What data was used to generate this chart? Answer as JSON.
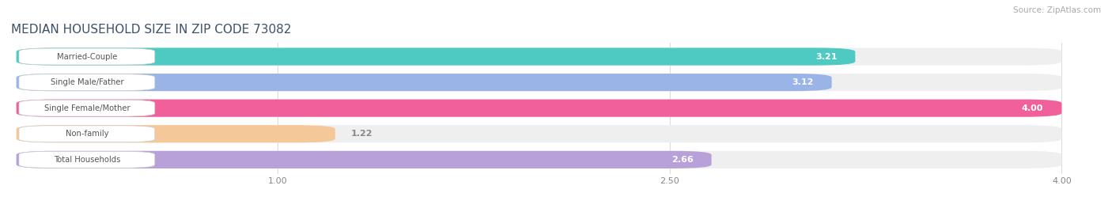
{
  "title": "MEDIAN HOUSEHOLD SIZE IN ZIP CODE 73082",
  "source": "Source: ZipAtlas.com",
  "categories": [
    "Married-Couple",
    "Single Male/Father",
    "Single Female/Mother",
    "Non-family",
    "Total Households"
  ],
  "values": [
    3.21,
    3.12,
    4.0,
    1.22,
    2.66
  ],
  "bar_colors": [
    "#4ecac2",
    "#9ab4e8",
    "#f0609a",
    "#f5c89a",
    "#b8a0d8"
  ],
  "xlim_min": 0,
  "xlim_max": 4.0,
  "xticks": [
    1.0,
    2.5,
    4.0
  ],
  "bg_color": "#ffffff",
  "bar_bg_color": "#efefef",
  "title_color": "#3d5068",
  "label_color": "#555555",
  "value_color_inside": "#ffffff",
  "value_color_outside": "#888888",
  "source_color": "#aaaaaa",
  "badge_bg": "#ffffff",
  "grid_color": "#dddddd"
}
